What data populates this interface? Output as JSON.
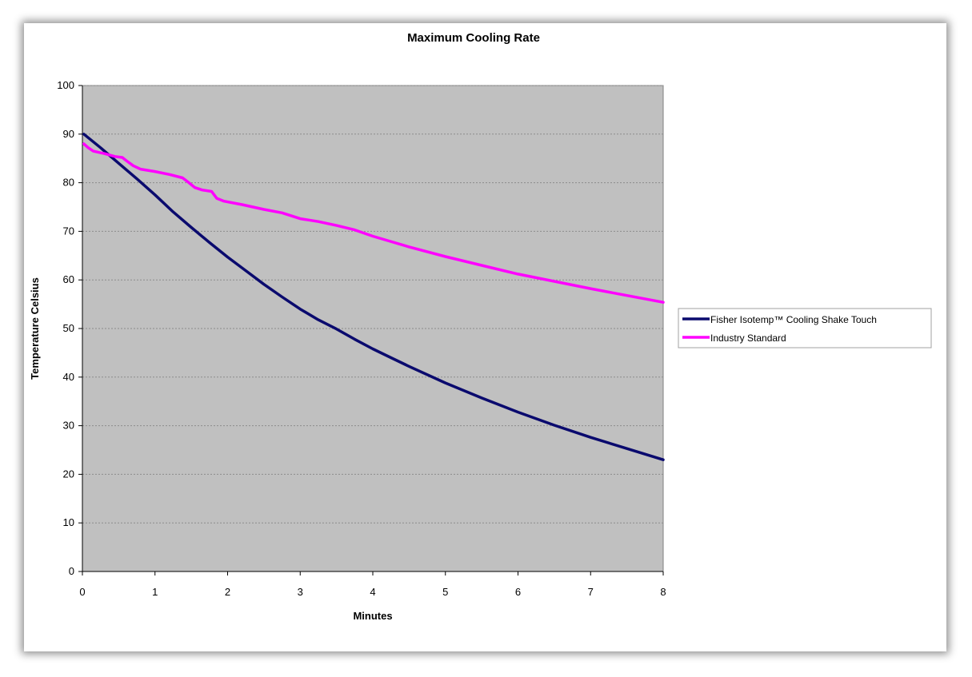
{
  "colors": {
    "plot_bg": "#c0c0c0",
    "grid": "#8c8c8c",
    "series_fisher": "#0a0a6e",
    "series_industry": "#ff00ff"
  },
  "chart_data": {
    "type": "line",
    "title": "Maximum Cooling Rate",
    "xlabel": "Minutes",
    "ylabel": "Temperature Celsius",
    "xlim": [
      0,
      8
    ],
    "ylim": [
      0,
      100
    ],
    "x_ticks": [
      0,
      1,
      2,
      3,
      4,
      5,
      6,
      7,
      8
    ],
    "y_ticks": [
      0,
      10,
      20,
      30,
      40,
      50,
      60,
      70,
      80,
      90,
      100
    ],
    "grid": "horizontal dashed",
    "legend": "right",
    "series": [
      {
        "name": "Fisher Isotemp™ Cooling Shake Touch",
        "color": "#0a0a6e",
        "points": [
          [
            0.02,
            90
          ],
          [
            0.25,
            87.2
          ],
          [
            0.5,
            84
          ],
          [
            0.75,
            80.8
          ],
          [
            1,
            77.5
          ],
          [
            1.25,
            74
          ],
          [
            1.5,
            70.8
          ],
          [
            1.75,
            67.7
          ],
          [
            2,
            64.7
          ],
          [
            2.25,
            61.9
          ],
          [
            2.5,
            59.1
          ],
          [
            2.75,
            56.5
          ],
          [
            3,
            54
          ],
          [
            3.25,
            51.8
          ],
          [
            3.5,
            49.9
          ],
          [
            3.75,
            47.8
          ],
          [
            4,
            45.8
          ],
          [
            4.25,
            44
          ],
          [
            4.5,
            42.2
          ],
          [
            5,
            38.8
          ],
          [
            5.5,
            35.7
          ],
          [
            6,
            32.8
          ],
          [
            6.5,
            30.1
          ],
          [
            7,
            27.6
          ],
          [
            7.5,
            25.3
          ],
          [
            8,
            23
          ]
        ]
      },
      {
        "name": "Industry Standard",
        "color": "#ff00ff",
        "points": [
          [
            0.02,
            88
          ],
          [
            0.08,
            87.2
          ],
          [
            0.15,
            86.5
          ],
          [
            0.3,
            86
          ],
          [
            0.45,
            85.4
          ],
          [
            0.55,
            85.2
          ],
          [
            0.6,
            84.6
          ],
          [
            0.7,
            83.5
          ],
          [
            0.8,
            82.8
          ],
          [
            1,
            82.3
          ],
          [
            1.2,
            81.7
          ],
          [
            1.38,
            81
          ],
          [
            1.45,
            80.2
          ],
          [
            1.55,
            79
          ],
          [
            1.65,
            78.5
          ],
          [
            1.78,
            78.2
          ],
          [
            1.85,
            76.8
          ],
          [
            1.95,
            76.2
          ],
          [
            2.2,
            75.5
          ],
          [
            2.5,
            74.5
          ],
          [
            2.75,
            73.8
          ],
          [
            3,
            72.6
          ],
          [
            3.25,
            72
          ],
          [
            3.5,
            71.2
          ],
          [
            3.75,
            70.3
          ],
          [
            4,
            69
          ],
          [
            4.5,
            66.8
          ],
          [
            5,
            64.8
          ],
          [
            5.5,
            63
          ],
          [
            6,
            61.2
          ],
          [
            6.5,
            59.7
          ],
          [
            7,
            58.2
          ],
          [
            7.5,
            56.8
          ],
          [
            8,
            55.4
          ]
        ]
      }
    ]
  }
}
